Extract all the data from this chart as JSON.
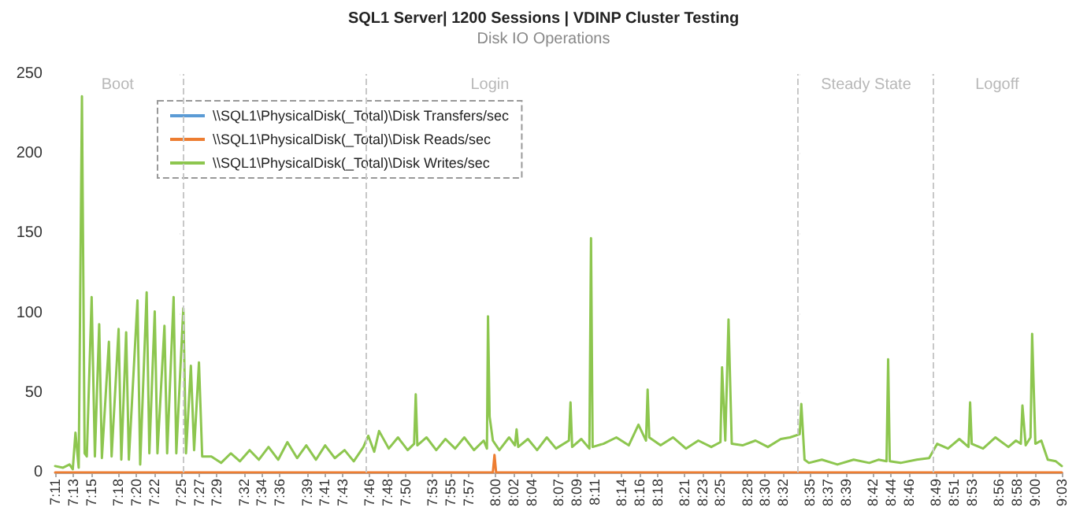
{
  "chart_data": {
    "type": "line",
    "title": "SQL1 Server| 1200 Sessions | VDINP Cluster Testing",
    "subtitle": "Disk IO Operations",
    "xlim": [
      7.1833,
      9.05
    ],
    "xticks": [
      {
        "value": 7.1833,
        "label": "7:11"
      },
      {
        "value": 7.2167,
        "label": "7:13"
      },
      {
        "value": 7.25,
        "label": "7:15"
      },
      {
        "value": 7.3,
        "label": "7:18"
      },
      {
        "value": 7.3333,
        "label": "7:20"
      },
      {
        "value": 7.3667,
        "label": "7:22"
      },
      {
        "value": 7.4167,
        "label": "7:25"
      },
      {
        "value": 7.45,
        "label": "7:27"
      },
      {
        "value": 7.4833,
        "label": "7:29"
      },
      {
        "value": 7.5333,
        "label": "7:32"
      },
      {
        "value": 7.5667,
        "label": "7:34"
      },
      {
        "value": 7.6,
        "label": "7:36"
      },
      {
        "value": 7.65,
        "label": "7:39"
      },
      {
        "value": 7.6833,
        "label": "7:41"
      },
      {
        "value": 7.7167,
        "label": "7:43"
      },
      {
        "value": 7.7667,
        "label": "7:46"
      },
      {
        "value": 7.8,
        "label": "7:48"
      },
      {
        "value": 7.8333,
        "label": "7:50"
      },
      {
        "value": 7.8833,
        "label": "7:53"
      },
      {
        "value": 7.9167,
        "label": "7:55"
      },
      {
        "value": 7.95,
        "label": "7:57"
      },
      {
        "value": 8.0,
        "label": "8:00"
      },
      {
        "value": 8.0333,
        "label": "8:02"
      },
      {
        "value": 8.0667,
        "label": "8:04"
      },
      {
        "value": 8.1167,
        "label": "8:07"
      },
      {
        "value": 8.15,
        "label": "8:09"
      },
      {
        "value": 8.1833,
        "label": "8:11"
      },
      {
        "value": 8.2333,
        "label": "8:14"
      },
      {
        "value": 8.2667,
        "label": "8:16"
      },
      {
        "value": 8.3,
        "label": "8:18"
      },
      {
        "value": 8.35,
        "label": "8:21"
      },
      {
        "value": 8.3833,
        "label": "8:23"
      },
      {
        "value": 8.4167,
        "label": "8:25"
      },
      {
        "value": 8.4667,
        "label": "8:28"
      },
      {
        "value": 8.5,
        "label": "8:30"
      },
      {
        "value": 8.5333,
        "label": "8:32"
      },
      {
        "value": 8.5833,
        "label": "8:35"
      },
      {
        "value": 8.6167,
        "label": "8:37"
      },
      {
        "value": 8.65,
        "label": "8:39"
      },
      {
        "value": 8.7,
        "label": "8:42"
      },
      {
        "value": 8.7333,
        "label": "8:44"
      },
      {
        "value": 8.7667,
        "label": "8:46"
      },
      {
        "value": 8.8167,
        "label": "8:49"
      },
      {
        "value": 8.85,
        "label": "8:51"
      },
      {
        "value": 8.8833,
        "label": "8:53"
      },
      {
        "value": 8.9333,
        "label": "8:56"
      },
      {
        "value": 8.9667,
        "label": "8:58"
      },
      {
        "value": 9.0,
        "label": "9:00"
      },
      {
        "value": 9.05,
        "label": "9:03"
      }
    ],
    "ylim": [
      0,
      250
    ],
    "yticks": [
      0,
      50,
      100,
      150,
      200,
      250
    ],
    "grid": "y",
    "legend": "top left",
    "marker": "none",
    "line_style": "solid",
    "ref_lines": [
      {
        "axis": "x",
        "value": 7.415,
        "color": "#c8c8c8",
        "line_style": "dashed"
      },
      {
        "axis": "x",
        "value": 7.761,
        "color": "#c8c8c8",
        "line_style": "dashed"
      },
      {
        "axis": "x",
        "value": 8.564,
        "color": "#c8c8c8",
        "line_style": "dashed"
      },
      {
        "axis": "x",
        "value": 8.81,
        "color": "#c8c8c8",
        "line_style": "dashed"
      }
    ],
    "bands": [
      {
        "axis": "x",
        "from": 7.1833,
        "to": 7.415,
        "label": "Boot",
        "color": "#ffffff"
      },
      {
        "axis": "x",
        "from": 7.415,
        "to": 8.564,
        "label": "Login",
        "color": "#ffffff"
      },
      {
        "axis": "x",
        "from": 8.564,
        "to": 8.81,
        "label": "Steady State",
        "color": "#ffffff"
      },
      {
        "axis": "x",
        "from": 8.81,
        "to": 9.05,
        "label": "Logoff",
        "color": "#ffffff"
      }
    ],
    "series": [
      {
        "name": "\\\\SQL1\\PhysicalDisk(_Total)\\Disk Transfers/sec",
        "color": "#5b9bd5"
      },
      {
        "name": "\\\\SQL1\\PhysicalDisk(_Total)\\Disk Reads/sec",
        "color": "#ed7d31",
        "x": [
          7.1833,
          7.995,
          7.998,
          8.001,
          9.05
        ],
        "values": [
          0,
          0,
          11,
          0,
          0
        ]
      },
      {
        "name": "\\\\SQL1\\PhysicalDisk(_Total)\\Disk Writes/sec",
        "color": "#8dc64f",
        "x": [
          7.1833,
          7.198,
          7.21,
          7.216,
          7.221,
          7.227,
          7.233,
          7.238,
          7.242,
          7.251,
          7.257,
          7.265,
          7.27,
          7.283,
          7.288,
          7.301,
          7.306,
          7.315,
          7.32,
          7.336,
          7.341,
          7.353,
          7.358,
          7.368,
          7.373,
          7.386,
          7.391,
          7.403,
          7.408,
          7.421,
          7.426,
          7.435,
          7.441,
          7.45,
          7.456,
          7.473,
          7.491,
          7.509,
          7.526,
          7.544,
          7.561,
          7.579,
          7.597,
          7.614,
          7.632,
          7.649,
          7.667,
          7.684,
          7.702,
          7.72,
          7.737,
          7.755,
          7.764,
          7.775,
          7.784,
          7.802,
          7.819,
          7.837,
          7.849,
          7.852,
          7.855,
          7.872,
          7.89,
          7.907,
          7.925,
          7.942,
          7.96,
          7.978,
          7.984,
          7.986,
          7.989,
          7.995,
          8.007,
          8.025,
          8.036,
          8.039,
          8.042,
          8.06,
          8.077,
          8.095,
          8.112,
          8.136,
          8.139,
          8.142,
          8.159,
          8.174,
          8.177,
          8.18,
          8.2,
          8.224,
          8.247,
          8.265,
          8.279,
          8.282,
          8.285,
          8.306,
          8.329,
          8.353,
          8.376,
          8.4,
          8.417,
          8.42,
          8.426,
          8.432,
          8.438,
          8.458,
          8.482,
          8.505,
          8.529,
          8.546,
          8.564,
          8.567,
          8.573,
          8.581,
          8.605,
          8.634,
          8.664,
          8.693,
          8.71,
          8.725,
          8.728,
          8.731,
          8.751,
          8.781,
          8.804,
          8.819,
          8.839,
          8.86,
          8.877,
          8.88,
          8.883,
          8.904,
          8.927,
          8.951,
          8.965,
          8.974,
          8.977,
          8.983,
          8.992,
          8.995,
          9.001,
          9.012,
          9.024,
          9.039,
          9.05
        ],
        "values": [
          4,
          3,
          5,
          2,
          25,
          3,
          236,
          12,
          10,
          110,
          10,
          93,
          9,
          82,
          10,
          90,
          8,
          88,
          8,
          108,
          5,
          113,
          12,
          101,
          12,
          92,
          12,
          110,
          12,
          103,
          12,
          67,
          14,
          69,
          10,
          10,
          6,
          12,
          7,
          14,
          8,
          16,
          8,
          19,
          9,
          17,
          8,
          17,
          9,
          14,
          7,
          16,
          23,
          13,
          26,
          15,
          22,
          14,
          18,
          49,
          17,
          22,
          14,
          21,
          15,
          22,
          14,
          20,
          15,
          98,
          35,
          20,
          14,
          22,
          17,
          27,
          16,
          21,
          14,
          22,
          15,
          20,
          44,
          16,
          21,
          15,
          147,
          16,
          18,
          22,
          17,
          30,
          20,
          52,
          22,
          17,
          22,
          15,
          20,
          16,
          19,
          66,
          20,
          96,
          18,
          17,
          20,
          16,
          21,
          22,
          24,
          43,
          8,
          6,
          8,
          5,
          8,
          6,
          8,
          7,
          71,
          7,
          6,
          8,
          9,
          18,
          15,
          21,
          16,
          44,
          18,
          15,
          22,
          16,
          20,
          18,
          42,
          17,
          22,
          87,
          18,
          20,
          8,
          7,
          4
        ]
      }
    ]
  }
}
